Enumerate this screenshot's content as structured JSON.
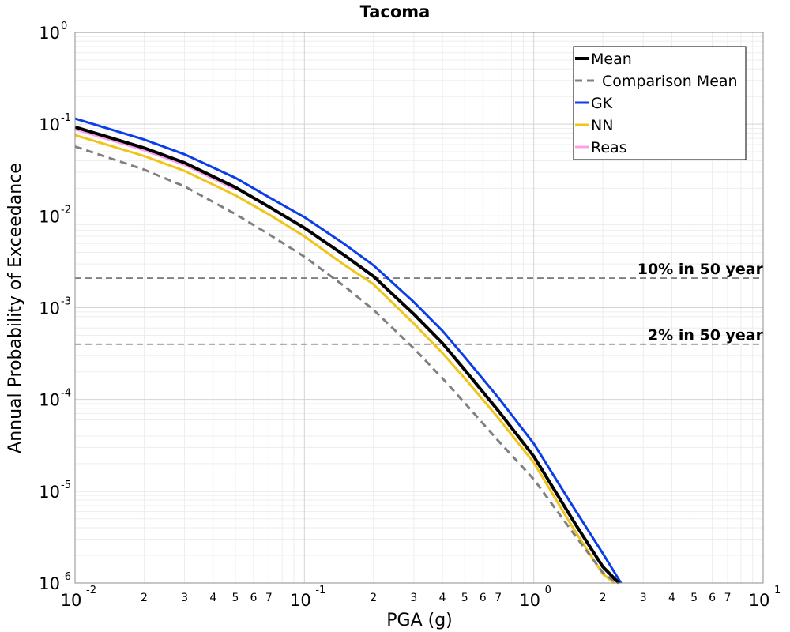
{
  "chart_data": {
    "type": "line",
    "title": "Tacoma",
    "xlabel": "PGA (g)",
    "ylabel": "Annual Probability of Exceedance",
    "xscale": "log",
    "yscale": "log",
    "xlim": [
      0.01,
      10
    ],
    "ylim": [
      1e-06,
      1
    ],
    "grid": true,
    "legend_position": "top-right",
    "x_major_ticks": [
      {
        "value": 0.01,
        "base": "10",
        "exp": "-2"
      },
      {
        "value": 0.1,
        "base": "10",
        "exp": "-1"
      },
      {
        "value": 1,
        "base": "10",
        "exp": "0"
      },
      {
        "value": 10,
        "base": "10",
        "exp": "1"
      }
    ],
    "x_minor_labels": [
      "2",
      "3",
      "4",
      "5",
      "6",
      "7"
    ],
    "y_major_ticks": [
      {
        "value": 1,
        "base": "10",
        "exp": "0"
      },
      {
        "value": 0.1,
        "base": "10",
        "exp": "-1"
      },
      {
        "value": 0.01,
        "base": "10",
        "exp": "-2"
      },
      {
        "value": 0.001,
        "base": "10",
        "exp": "-3"
      },
      {
        "value": 0.0001,
        "base": "10",
        "exp": "-4"
      },
      {
        "value": 1e-05,
        "base": "10",
        "exp": "-5"
      },
      {
        "value": 1e-06,
        "base": "10",
        "exp": "-6"
      }
    ],
    "series": [
      {
        "name": "Mean",
        "color": "#000000",
        "dash": "solid",
        "x": [
          0.01,
          0.02,
          0.03,
          0.05,
          0.07,
          0.1,
          0.15,
          0.2,
          0.3,
          0.4,
          0.5,
          0.7,
          1.0,
          1.5,
          2.0,
          2.35
        ],
        "y": [
          0.093,
          0.055,
          0.038,
          0.0205,
          0.0126,
          0.0074,
          0.0037,
          0.0022,
          0.00085,
          0.00041,
          0.00021,
          7.55e-05,
          2.4e-05,
          4.6e-06,
          1.5e-06,
          1e-06
        ]
      },
      {
        "name": "Comparison Mean",
        "color": "#808080",
        "dash": "dashed",
        "x": [
          0.01,
          0.02,
          0.03,
          0.05,
          0.07,
          0.1,
          0.15,
          0.2,
          0.3,
          0.4,
          0.5,
          0.7,
          1.0,
          1.5,
          2.0,
          2.3
        ],
        "y": [
          0.057,
          0.032,
          0.021,
          0.0105,
          0.0063,
          0.0036,
          0.0017,
          0.00095,
          0.00036,
          0.00017,
          9.15e-05,
          3.55e-05,
          1.35e-05,
          3.4e-06,
          1.3e-06,
          1e-06
        ]
      },
      {
        "name": "GK",
        "color": "#0b3ee8",
        "dash": "solid",
        "x": [
          0.01,
          0.02,
          0.03,
          0.05,
          0.07,
          0.1,
          0.15,
          0.2,
          0.3,
          0.4,
          0.5,
          0.7,
          1.0,
          1.5,
          2.0,
          2.4
        ],
        "y": [
          0.115,
          0.068,
          0.047,
          0.026,
          0.016,
          0.0097,
          0.0049,
          0.0029,
          0.00115,
          0.00056,
          0.00029,
          0.000105,
          3.3e-05,
          6.5e-06,
          2.1e-06,
          1e-06
        ]
      },
      {
        "name": "NN",
        "color": "#f0c419",
        "dash": "solid",
        "x": [
          0.01,
          0.02,
          0.03,
          0.05,
          0.07,
          0.1,
          0.15,
          0.2,
          0.3,
          0.4,
          0.5,
          0.7,
          1.0,
          1.5,
          2.0,
          2.25
        ],
        "y": [
          0.076,
          0.045,
          0.031,
          0.0168,
          0.0104,
          0.006,
          0.0029,
          0.0018,
          0.00067,
          0.00032,
          0.00017,
          6.3e-05,
          2.05e-05,
          3.8e-06,
          1.25e-06,
          1e-06
        ]
      },
      {
        "name": "Reas",
        "color": "#f9a0e8",
        "dash": "solid",
        "x": [
          0.01,
          0.02,
          0.03,
          0.05
        ],
        "y": [
          0.088,
          0.052,
          0.036,
          0.0195
        ]
      }
    ],
    "reference_lines": [
      {
        "label": "10% in 50 year",
        "y": 0.0021,
        "color": "#808080"
      },
      {
        "label": "2% in 50 year",
        "y": 0.0004,
        "color": "#808080"
      }
    ]
  }
}
